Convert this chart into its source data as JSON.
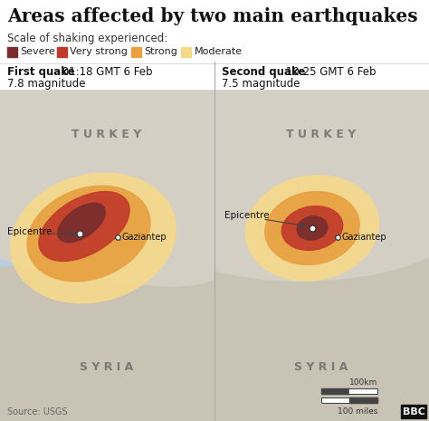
{
  "title": "Areas affected by two main earthquakes",
  "subtitle": "Scale of shaking experienced:",
  "legend_items": [
    {
      "label": "Severe",
      "color": "#7b2d2d"
    },
    {
      "label": "Very strong",
      "color": "#c0392b"
    },
    {
      "label": "Strong",
      "color": "#e8a040"
    },
    {
      "label": "Moderate",
      "color": "#f5d98b"
    }
  ],
  "quake1_title": "First quake",
  "quake1_time": " 01:18 GMT 6 Feb",
  "quake1_mag": "7.8 magnitude",
  "quake2_title": "Second quake",
  "quake2_time": " 10:25 GMT 6 Feb",
  "quake2_mag": "7.5 magnitude",
  "source": "Source: USGS",
  "bbc_logo": "BBC",
  "turkey_label": "T U R K E Y",
  "syria_label": "S Y R I A",
  "epicentre_label": "Epicentre",
  "gaziantep_label": "Gaziantep",
  "scale_100km": "100km",
  "scale_100miles": "100 miles",
  "land_color": "#d4cfc4",
  "sea_color": "#b8cfe0",
  "syria_color": "#c8c3b5",
  "bg_color": "#ffffff"
}
